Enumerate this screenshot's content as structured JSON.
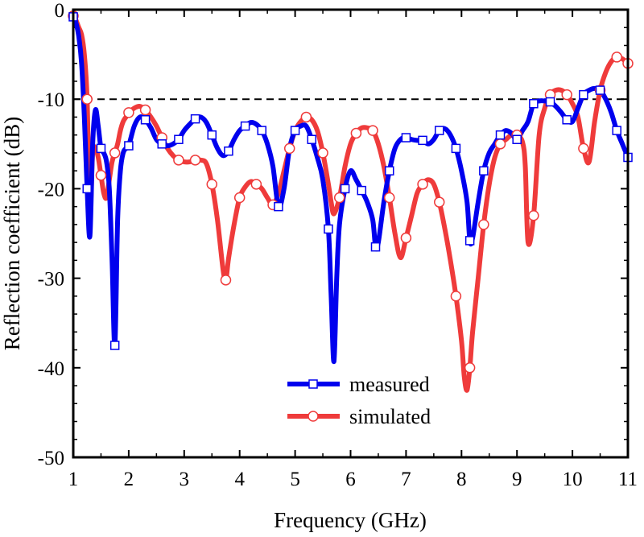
{
  "chart_data": {
    "type": "line",
    "title": "",
    "xlabel": "Frequency (GHz)",
    "ylabel": "Reflection coefficient (dB)",
    "xlim": [
      1,
      11
    ],
    "ylim": [
      -50,
      0
    ],
    "xticks": [
      1,
      2,
      3,
      4,
      5,
      6,
      7,
      8,
      9,
      10,
      11
    ],
    "yticks": [
      0,
      -10,
      -20,
      -30,
      -40,
      -50
    ],
    "xtick_labels": [
      "1",
      "2",
      "3",
      "4",
      "5",
      "6",
      "7",
      "8",
      "9",
      "10",
      "11"
    ],
    "ytick_labels": [
      "0",
      "-10",
      "-20",
      "-30",
      "-40",
      "-50"
    ],
    "reference_line": {
      "y": -10,
      "style": "dashed"
    },
    "legend": [
      "measured",
      "simulated"
    ],
    "legend_position": "bottom-center",
    "series": [
      {
        "name": "measured",
        "color": "#0000ee",
        "marker": "square",
        "x": [
          1.0,
          1.05,
          1.1,
          1.15,
          1.2,
          1.25,
          1.3,
          1.35,
          1.4,
          1.45,
          1.5,
          1.55,
          1.6,
          1.65,
          1.7,
          1.75,
          1.8,
          1.85,
          1.9,
          1.95,
          2.0,
          2.1,
          2.2,
          2.3,
          2.4,
          2.5,
          2.6,
          2.7,
          2.8,
          2.9,
          3.0,
          3.1,
          3.2,
          3.3,
          3.4,
          3.5,
          3.6,
          3.7,
          3.8,
          3.9,
          4.0,
          4.1,
          4.2,
          4.3,
          4.4,
          4.5,
          4.6,
          4.7,
          4.8,
          4.9,
          5.0,
          5.1,
          5.2,
          5.3,
          5.4,
          5.5,
          5.6,
          5.65,
          5.7,
          5.75,
          5.8,
          5.9,
          6.0,
          6.1,
          6.2,
          6.3,
          6.4,
          6.45,
          6.5,
          6.6,
          6.7,
          6.8,
          6.9,
          7.0,
          7.1,
          7.2,
          7.3,
          7.4,
          7.5,
          7.6,
          7.7,
          7.8,
          7.9,
          8.0,
          8.1,
          8.15,
          8.2,
          8.3,
          8.4,
          8.5,
          8.6,
          8.7,
          8.8,
          8.9,
          9.0,
          9.1,
          9.2,
          9.3,
          9.4,
          9.5,
          9.6,
          9.7,
          9.8,
          9.9,
          10.0,
          10.1,
          10.2,
          10.3,
          10.4,
          10.5,
          10.6,
          10.7,
          10.8,
          10.9,
          11.0
        ],
        "y": [
          -0.8,
          -1.5,
          -3.0,
          -6.0,
          -12.0,
          -20.0,
          -25.3,
          -15.0,
          -11.2,
          -13.0,
          -15.5,
          -16.0,
          -17.0,
          -20.0,
          -28.0,
          -37.5,
          -23.5,
          -18.0,
          -16.0,
          -15.5,
          -15.2,
          -13.0,
          -12.0,
          -12.3,
          -13.2,
          -14.5,
          -15.0,
          -15.2,
          -15.0,
          -14.5,
          -13.5,
          -12.8,
          -12.2,
          -12.0,
          -12.6,
          -14.0,
          -15.5,
          -16.3,
          -15.8,
          -14.5,
          -13.5,
          -13.0,
          -12.6,
          -12.8,
          -13.5,
          -15.0,
          -17.5,
          -22.0,
          -20.0,
          -15.5,
          -13.5,
          -13.0,
          -13.0,
          -14.5,
          -16.5,
          -19.0,
          -24.5,
          -32.0,
          -39.3,
          -30.0,
          -24.0,
          -20.0,
          -18.0,
          -19.0,
          -20.2,
          -21.5,
          -23.5,
          -26.5,
          -26.0,
          -21.5,
          -18.0,
          -15.5,
          -14.5,
          -14.3,
          -14.5,
          -14.6,
          -14.6,
          -15.0,
          -14.5,
          -13.5,
          -13.3,
          -14.0,
          -15.5,
          -18.0,
          -21.5,
          -25.8,
          -25.5,
          -21.5,
          -18.0,
          -16.0,
          -15.0,
          -14.0,
          -13.5,
          -13.8,
          -14.5,
          -13.5,
          -12.5,
          -10.5,
          -10.2,
          -10.2,
          -10.3,
          -10.8,
          -11.5,
          -12.3,
          -12.5,
          -11.0,
          -9.5,
          -9.0,
          -8.8,
          -9.0,
          -10.0,
          -11.5,
          -13.5,
          -15.0,
          -16.5
        ]
      },
      {
        "name": "simulated",
        "color": "#ef3b3b",
        "marker": "circle",
        "x": [
          1.0,
          1.05,
          1.1,
          1.15,
          1.2,
          1.25,
          1.3,
          1.35,
          1.4,
          1.45,
          1.5,
          1.55,
          1.6,
          1.65,
          1.7,
          1.75,
          1.8,
          1.85,
          1.9,
          1.95,
          2.0,
          2.1,
          2.2,
          2.3,
          2.4,
          2.5,
          2.6,
          2.7,
          2.8,
          2.9,
          3.0,
          3.1,
          3.2,
          3.3,
          3.4,
          3.5,
          3.6,
          3.7,
          3.75,
          3.8,
          3.9,
          4.0,
          4.1,
          4.2,
          4.3,
          4.4,
          4.5,
          4.6,
          4.7,
          4.8,
          4.9,
          5.0,
          5.1,
          5.2,
          5.3,
          5.4,
          5.5,
          5.6,
          5.65,
          5.7,
          5.8,
          5.9,
          6.0,
          6.1,
          6.2,
          6.3,
          6.4,
          6.5,
          6.6,
          6.7,
          6.8,
          6.9,
          7.0,
          7.1,
          7.2,
          7.3,
          7.4,
          7.5,
          7.6,
          7.7,
          7.8,
          7.9,
          8.0,
          8.05,
          8.1,
          8.15,
          8.2,
          8.3,
          8.4,
          8.5,
          8.6,
          8.7,
          8.8,
          8.9,
          9.0,
          9.1,
          9.15,
          9.2,
          9.3,
          9.4,
          9.5,
          9.6,
          9.7,
          9.8,
          9.9,
          10.0,
          10.1,
          10.2,
          10.3,
          10.4,
          10.5,
          10.6,
          10.7,
          10.8,
          10.9,
          11.0
        ],
        "y": [
          -0.7,
          -1.2,
          -2.0,
          -2.8,
          -5.0,
          -10.0,
          -22.5,
          -16.0,
          -15.5,
          -16.5,
          -18.5,
          -20.5,
          -21.0,
          -19.0,
          -17.0,
          -16.0,
          -15.0,
          -13.5,
          -12.5,
          -12.0,
          -11.5,
          -11.0,
          -10.8,
          -11.2,
          -12.0,
          -13.0,
          -14.3,
          -15.5,
          -16.3,
          -16.8,
          -17.0,
          -17.0,
          -16.8,
          -16.8,
          -17.2,
          -19.5,
          -23.5,
          -29.0,
          -30.2,
          -27.8,
          -24.0,
          -21.0,
          -19.8,
          -19.2,
          -19.5,
          -20.0,
          -21.0,
          -21.8,
          -20.5,
          -18.0,
          -15.5,
          -13.5,
          -12.5,
          -12.0,
          -12.3,
          -13.5,
          -16.0,
          -19.5,
          -21.5,
          -22.8,
          -21.0,
          -17.5,
          -15.0,
          -13.8,
          -13.2,
          -13.2,
          -13.5,
          -15.0,
          -17.5,
          -21.0,
          -25.0,
          -27.7,
          -25.5,
          -23.0,
          -20.5,
          -19.5,
          -19.0,
          -19.5,
          -21.5,
          -24.5,
          -28.0,
          -32.0,
          -37.0,
          -41.0,
          -42.5,
          -40.0,
          -36.0,
          -30.0,
          -24.0,
          -19.5,
          -16.5,
          -15.0,
          -14.5,
          -14.0,
          -14.0,
          -14.8,
          -17.5,
          -26.0,
          -23.0,
          -14.0,
          -11.0,
          -9.5,
          -9.0,
          -9.0,
          -9.5,
          -10.5,
          -12.0,
          -15.5,
          -17.0,
          -12.5,
          -9.0,
          -7.0,
          -5.8,
          -5.3,
          -5.5,
          -6.0
        ]
      }
    ]
  }
}
